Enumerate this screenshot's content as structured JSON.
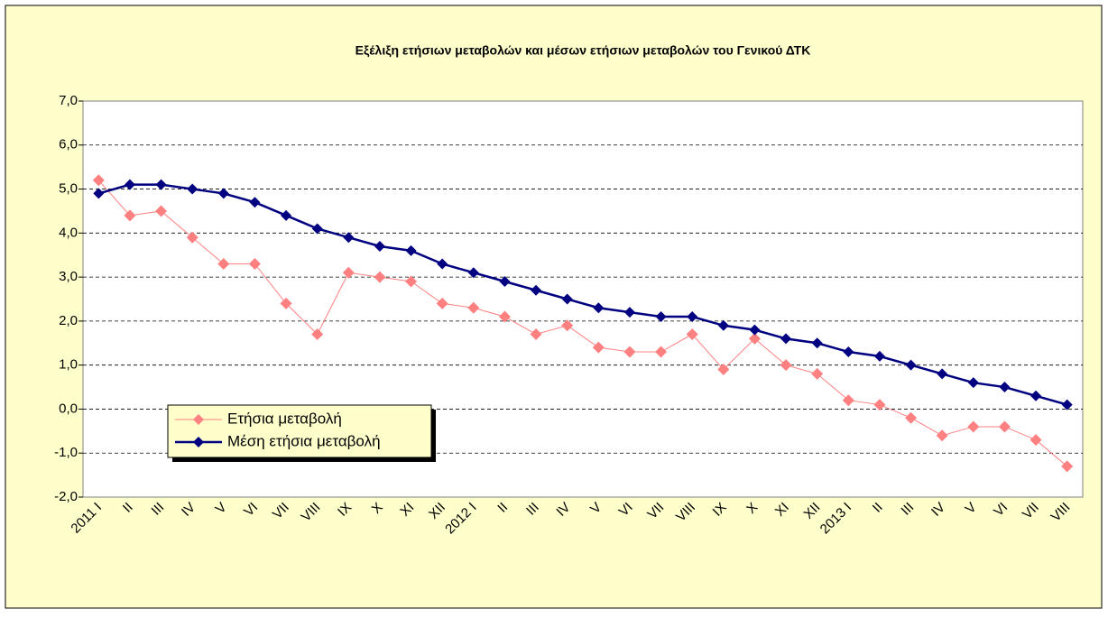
{
  "chart_data": {
    "type": "line",
    "title": "Εξέλιξη ετήσιων μεταβολών και μέσων ετήσιων μεταβολών του Γενικού ΔΤΚ",
    "categories": [
      "2011 I",
      "II",
      "III",
      "IV",
      "V",
      "VI",
      "VII",
      "VIII",
      "IX",
      "X",
      "XI",
      "XII",
      "2012 I",
      "II",
      "III",
      "IV",
      "V",
      "VI",
      "VII",
      "VIII",
      "IX",
      "X",
      "XI",
      "XII",
      "2013 I",
      "II",
      "III",
      "IV",
      "V",
      "VI",
      "VII",
      "VIII"
    ],
    "series": [
      {
        "name": "Ετήσια μεταβολή",
        "color": "#ff8080",
        "values": [
          5.2,
          4.4,
          4.5,
          3.9,
          3.3,
          3.3,
          2.4,
          1.7,
          3.1,
          3.0,
          2.9,
          2.4,
          2.3,
          2.1,
          1.7,
          1.9,
          1.4,
          1.3,
          1.3,
          1.7,
          0.9,
          1.6,
          1.0,
          0.8,
          0.2,
          0.1,
          -0.2,
          -0.6,
          -0.4,
          -0.4,
          -0.7,
          -1.3
        ]
      },
      {
        "name": "Μέση ετήσια μεταβολή",
        "color": "#000080",
        "values": [
          4.9,
          5.1,
          5.1,
          5.0,
          4.9,
          4.7,
          4.4,
          4.1,
          3.9,
          3.7,
          3.6,
          3.3,
          3.1,
          2.9,
          2.7,
          2.5,
          2.3,
          2.2,
          2.1,
          2.1,
          1.9,
          1.8,
          1.6,
          1.5,
          1.3,
          1.2,
          1.0,
          0.8,
          0.6,
          0.5,
          0.3,
          0.1
        ]
      }
    ],
    "ylim": [
      -2,
      7
    ],
    "yticks": [
      {
        "value": -2,
        "label": "-2,0"
      },
      {
        "value": -1,
        "label": "-1,0"
      },
      {
        "value": 0,
        "label": "0,0"
      },
      {
        "value": 1,
        "label": "1,0"
      },
      {
        "value": 2,
        "label": "2,0"
      },
      {
        "value": 3,
        "label": "3,0"
      },
      {
        "value": 4,
        "label": "4,0"
      },
      {
        "value": 5,
        "label": "5,0"
      },
      {
        "value": 6,
        "label": "6,0"
      },
      {
        "value": 7,
        "label": "7,0"
      }
    ],
    "grid": true,
    "legend": "lower left"
  }
}
